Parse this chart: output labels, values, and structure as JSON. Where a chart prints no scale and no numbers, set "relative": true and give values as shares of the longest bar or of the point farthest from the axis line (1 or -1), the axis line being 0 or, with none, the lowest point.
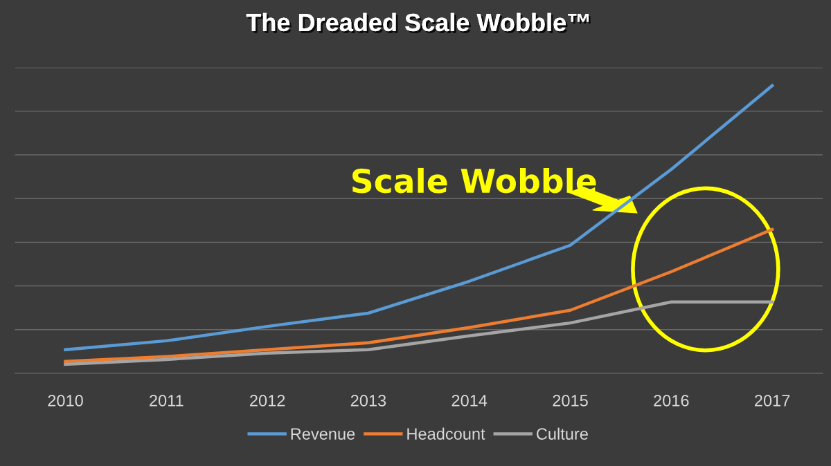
{
  "chart_data": {
    "type": "line",
    "title": "The Dreaded Scale Wobble™",
    "relative": true,
    "categories": [
      "2010",
      "2011",
      "2012",
      "2013",
      "2014",
      "2015",
      "2016",
      "2017"
    ],
    "series": [
      {
        "name": "Revenue",
        "color": "#5b9bd5",
        "values": [
          0.082,
          0.113,
          0.163,
          0.209,
          0.32,
          0.445,
          0.709,
          1.0
        ]
      },
      {
        "name": "Headcount",
        "color": "#ed7d31",
        "values": [
          0.041,
          0.058,
          0.082,
          0.106,
          0.159,
          0.219,
          0.353,
          0.5
        ]
      },
      {
        "name": "Culture",
        "color": "#a5a5a5",
        "values": [
          0.031,
          0.048,
          0.07,
          0.082,
          0.13,
          0.175,
          0.248,
          0.248
        ]
      }
    ],
    "annotations": [
      "Scale Wobble"
    ],
    "grid": "y",
    "legend": "bottom",
    "marker": "none",
    "line_style": "solid"
  }
}
